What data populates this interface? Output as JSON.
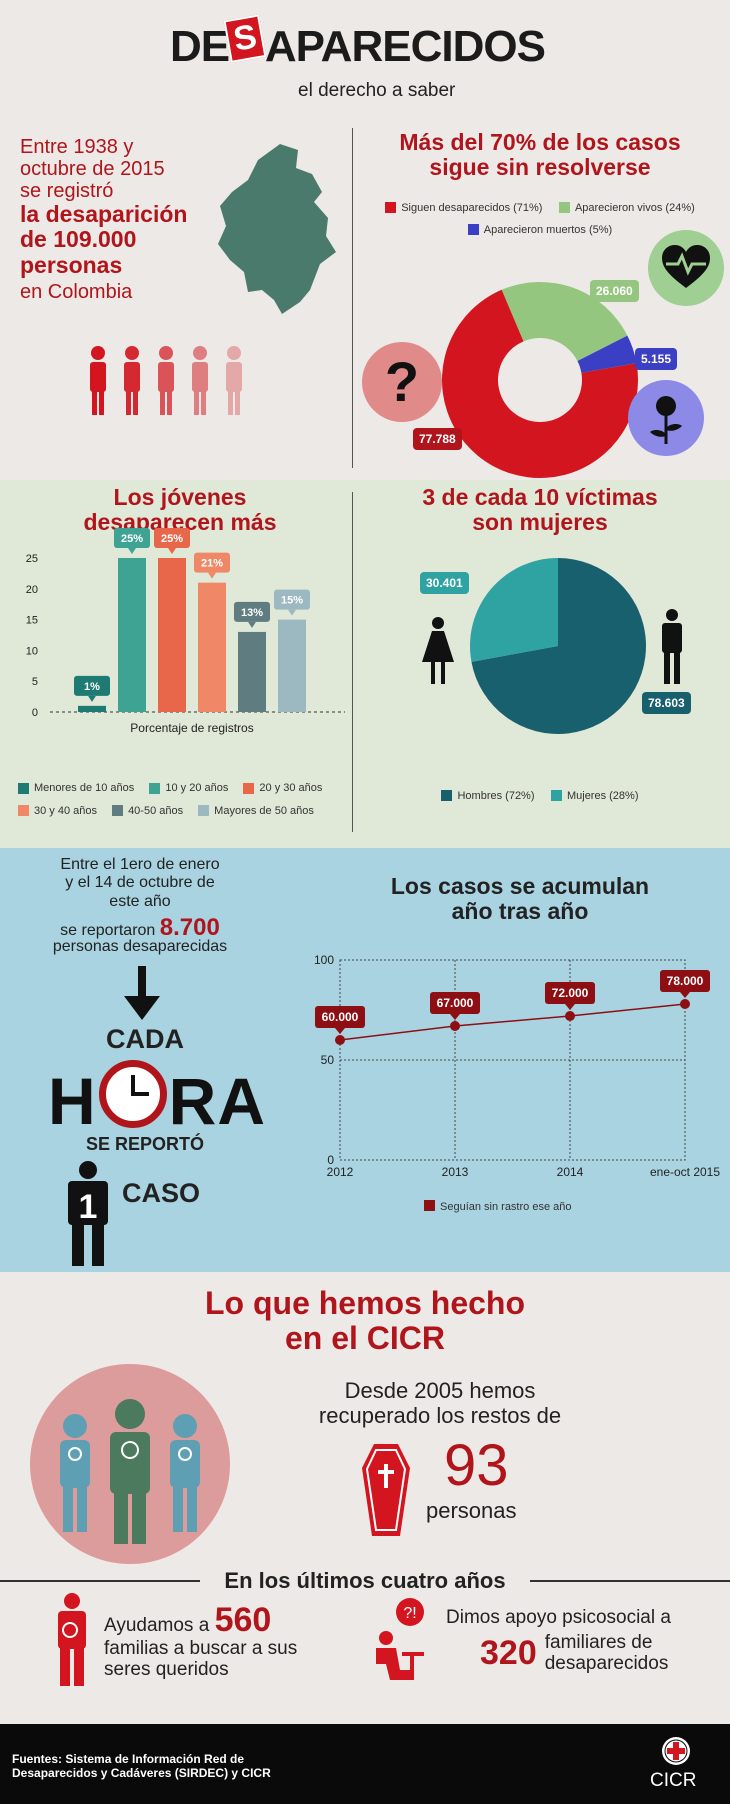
{
  "header": {
    "title_left": "DE",
    "title_s": "S",
    "title_right": "APARECIDOS",
    "subtitle": "el derecho a saber"
  },
  "intro": {
    "line1": "Entre 1938 y",
    "line2": "octubre de 2015",
    "line3": "se registró",
    "bold1": "la desaparición",
    "bold2": "de 109.000",
    "bold3": "personas",
    "line4": "en Colombia"
  },
  "donut": {
    "title1": "Más del 70% de los casos",
    "title2": "sigue sin resolverse",
    "legend": [
      "Siguen desaparecidos (71%)",
      "Aparecieron vivos (24%)",
      "Aparecieron muertos (5%)"
    ],
    "labels": [
      "77.788",
      "26.060",
      "5.155"
    ],
    "colors": [
      "#d2151e",
      "#94c67f",
      "#3a3fc4"
    ]
  },
  "bars": {
    "title1": "Los jóvenes",
    "title2": "desaparecen más",
    "xlabel": "Porcentaje de registros",
    "yticks": [
      "25",
      "20",
      "15",
      "10",
      "5",
      "0"
    ]
  },
  "pie": {
    "title1": "3 de cada 10 víctimas",
    "title2": "son mujeres",
    "labels": [
      "78.603",
      "30.401"
    ],
    "legend": [
      "Hombres (72%)",
      "Mujeres (28%)"
    ]
  },
  "hour": {
    "l1": "Entre el 1ero de enero",
    "l2": "y el 14 de octubre de",
    "l3": "este año",
    "l4": "se reportaron",
    "num": "8.700",
    "l5": "personas desaparecidas",
    "cada": "CADA",
    "h": "H",
    "ra": "RA",
    "reporto": "SE REPORTÓ",
    "one": "1",
    "caso": "CASO"
  },
  "line": {
    "title1": "Los casos se acumulan",
    "title2": "año tras año",
    "legend": "Seguían sin rastro ese año",
    "yticks": [
      "100",
      "50",
      "0"
    ]
  },
  "cicr": {
    "title1": "Lo que hemos hecho",
    "title2": "en el CICR",
    "since1": "Desde 2005 hemos",
    "since2": "recuperado los restos de",
    "num": "93",
    "persons": "personas",
    "four_years": "En los últimos cuatro años"
  },
  "help": {
    "a1": "Ayudamos a",
    "a_num": "560",
    "a2": "familias a buscar a sus",
    "a3": "seres queridos",
    "b1": "Dimos apoyo psicosocial a",
    "b_num": "320",
    "b2": "familiares de",
    "b3": "desaparecidos"
  },
  "footer": {
    "source1": "Fuentes: Sistema de Información Red de",
    "source2": "Desaparecidos y Cadáveres (SIRDEC) y CICR",
    "logo": "CICR"
  },
  "chart_data": [
    {
      "type": "pie",
      "title": "Más del 70% de los casos sigue sin resolverse",
      "categories": [
        "Siguen desaparecidos (71%)",
        "Aparecieron vivos (24%)",
        "Aparecieron muertos (5%)"
      ],
      "values": [
        77788,
        26060,
        5155
      ]
    },
    {
      "type": "bar",
      "title": "Los jóvenes desaparecen más",
      "xlabel": "Porcentaje de registros",
      "ylim": [
        0,
        25
      ],
      "categories": [
        "Menores de 10 años",
        "10 y 20 años",
        "20 y 30 años",
        "30 y 40 años",
        "40-50 años",
        "Mayores de 50 años"
      ],
      "values": [
        1,
        25,
        25,
        21,
        13,
        15
      ],
      "value_labels": [
        "1%",
        "25%",
        "25%",
        "21%",
        "13%",
        "15%"
      ],
      "colors": [
        "#1e7b74",
        "#3fa394",
        "#e8674a",
        "#f08868",
        "#5f7d80",
        "#9cb8c0"
      ]
    },
    {
      "type": "pie",
      "title": "3 de cada 10 víctimas son mujeres",
      "categories": [
        "Hombres (72%)",
        "Mujeres (28%)"
      ],
      "values": [
        78603,
        30401
      ],
      "colors": [
        "#19606e",
        "#2ea3a2"
      ]
    },
    {
      "type": "line",
      "title": "Los casos se acumulan año tras año",
      "ylim": [
        0,
        100
      ],
      "x": [
        "2012",
        "2013",
        "2014",
        "ene-oct 2015"
      ],
      "values": [
        60,
        67,
        72,
        78
      ],
      "value_labels": [
        "60.000",
        "67.000",
        "72.000",
        "78.000"
      ],
      "series": [
        {
          "name": "Seguían sin rastro ese año",
          "values": [
            60,
            67,
            72,
            78
          ]
        }
      ]
    }
  ]
}
